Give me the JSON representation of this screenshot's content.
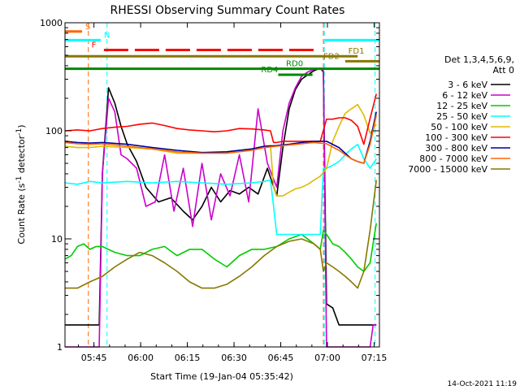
{
  "chart_data": {
    "type": "line",
    "title": "RHESSI Observing Summary Count Rates",
    "xlabel": "Start Time (19-Jan-04 05:35:42)",
    "ylabel_main": "Count Rate (s",
    "ylabel_sup": "-1",
    "ylabel_mid": " detector",
    "ylabel_end": ")",
    "y_scale": "log",
    "ylim": [
      1,
      1000
    ],
    "xlim_minutes": [
      0,
      101
    ],
    "x_ticks": [
      {
        "label": "05:45",
        "min": 9.3
      },
      {
        "label": "06:00",
        "min": 24.3
      },
      {
        "label": "06:15",
        "min": 39.3
      },
      {
        "label": "06:30",
        "min": 54.3
      },
      {
        "label": "06:45",
        "min": 69.3
      },
      {
        "label": "07:00",
        "min": 84.3
      },
      {
        "label": "07:15",
        "min": 99.3
      }
    ],
    "y_ticks": [
      {
        "label": "1",
        "value": 1
      },
      {
        "label": "10",
        "value": 10
      },
      {
        "label": "100",
        "value": 100
      },
      {
        "label": "1000",
        "value": 1000
      }
    ],
    "legend": {
      "header1": "Det 1,3,4,5,6,9,",
      "header2": "Att 0",
      "placement": "right"
    },
    "series": [
      {
        "name": "3 - 6 keV",
        "color": "#000000",
        "x": [
          0,
          5,
          11,
          12,
          14,
          16,
          18,
          20,
          23,
          26,
          30,
          34,
          38,
          41,
          44,
          47,
          50,
          53,
          56,
          59,
          62,
          65,
          68,
          70,
          72,
          74,
          76,
          78,
          80,
          82,
          83,
          84,
          86,
          88,
          90,
          92,
          94,
          96,
          98,
          100
        ],
        "y": [
          1.6,
          1.6,
          1.6,
          40,
          250,
          180,
          110,
          75,
          52,
          30,
          22,
          24,
          18,
          15,
          20,
          30,
          22,
          28,
          26,
          30,
          26,
          45,
          25,
          70,
          160,
          240,
          300,
          330,
          360,
          380,
          350,
          2.5,
          2.3,
          1.6,
          1.6,
          1.6,
          1.6,
          1.6,
          1.6,
          1.6
        ]
      },
      {
        "name": "6 - 12 keV",
        "color": "#cc00cc",
        "x": [
          0,
          11,
          12,
          14,
          16,
          18,
          20,
          23,
          26,
          29,
          32,
          35,
          38,
          41,
          44,
          47,
          50,
          53,
          56,
          59,
          62,
          65,
          68,
          70,
          72,
          74,
          76,
          78,
          80,
          82,
          83,
          84,
          88,
          92,
          96,
          98,
          99,
          100
        ],
        "y": [
          1,
          1,
          40,
          200,
          150,
          60,
          55,
          45,
          20,
          22,
          60,
          18,
          45,
          13,
          50,
          15,
          40,
          25,
          60,
          22,
          160,
          50,
          30,
          100,
          180,
          250,
          320,
          350,
          370,
          380,
          360,
          1,
          1,
          1,
          1,
          1,
          1.6,
          1.6
        ]
      },
      {
        "name": "12 - 25 keV",
        "color": "#00cc00",
        "x": [
          0,
          2,
          4,
          6,
          8,
          10,
          12,
          16,
          20,
          24,
          28,
          32,
          36,
          40,
          44,
          48,
          52,
          56,
          60,
          64,
          68,
          72,
          76,
          80,
          82,
          83,
          84,
          86,
          88,
          90,
          92,
          94,
          96,
          98,
          100
        ],
        "y": [
          6.5,
          7,
          8.5,
          9,
          8,
          8.5,
          8.5,
          7.5,
          7,
          7,
          8,
          8.5,
          7,
          8,
          8,
          6.5,
          5.5,
          7,
          8,
          8,
          8.5,
          10,
          11,
          9,
          8,
          12,
          11,
          9,
          8.5,
          7.5,
          6.5,
          5.5,
          5,
          6,
          14
        ]
      },
      {
        "name": "25 - 50 keV",
        "color": "#00ffff",
        "x": [
          0,
          4,
          8,
          12,
          20,
          28,
          36,
          44,
          52,
          60,
          64,
          66,
          67,
          68,
          70,
          72,
          74,
          76,
          78,
          80,
          82,
          83,
          84,
          86,
          88,
          90,
          92,
          94,
          96,
          98,
          100
        ],
        "y": [
          33,
          32,
          34,
          33,
          34,
          33,
          34,
          33,
          32,
          33,
          34,
          35,
          20,
          11,
          11,
          11,
          11,
          11,
          11,
          11,
          11,
          45,
          45,
          48,
          52,
          60,
          68,
          75,
          55,
          45,
          55
        ]
      },
      {
        "name": "50 - 100 keV",
        "color": "#ddbb00",
        "x": [
          0,
          4,
          8,
          12,
          20,
          28,
          36,
          44,
          52,
          60,
          64,
          66,
          67,
          68,
          70,
          72,
          74,
          76,
          78,
          80,
          82,
          84,
          86,
          88,
          90,
          92,
          94,
          96,
          98,
          100
        ],
        "y": [
          72,
          70,
          70,
          72,
          70,
          68,
          62,
          62,
          64,
          68,
          72,
          73,
          30,
          25,
          25,
          27,
          29,
          30,
          32,
          35,
          38,
          45,
          80,
          110,
          145,
          160,
          175,
          140,
          95,
          115
        ]
      },
      {
        "name": "100 - 300 keV",
        "color": "#ff0000",
        "x": [
          0,
          4,
          8,
          12,
          16,
          20,
          24,
          28,
          32,
          36,
          40,
          44,
          48,
          52,
          56,
          60,
          64,
          66,
          67,
          68,
          70,
          72,
          74,
          76,
          78,
          80,
          82,
          84,
          86,
          88,
          90,
          92,
          94,
          96,
          98,
          100
        ],
        "y": [
          100,
          102,
          100,
          105,
          108,
          110,
          115,
          118,
          112,
          105,
          102,
          100,
          98,
          100,
          105,
          104,
          102,
          100,
          78,
          78,
          80,
          80,
          80,
          80,
          80,
          80,
          80,
          128,
          128,
          132,
          132,
          125,
          110,
          75,
          130,
          220
        ]
      },
      {
        "name": "300 - 800 keV",
        "color": "#000099",
        "x": [
          0,
          4,
          8,
          12,
          20,
          28,
          36,
          44,
          52,
          60,
          64,
          68,
          72,
          76,
          80,
          84,
          88,
          90,
          92,
          94,
          96,
          98,
          100
        ],
        "y": [
          80,
          78,
          77,
          78,
          75,
          70,
          66,
          63,
          64,
          68,
          72,
          73,
          75,
          78,
          80,
          80,
          70,
          62,
          55,
          52,
          50,
          80,
          150
        ]
      },
      {
        "name": "800 - 7000 keV",
        "color": "#ff6600",
        "x": [
          0,
          4,
          8,
          12,
          20,
          28,
          36,
          44,
          52,
          60,
          64,
          68,
          72,
          76,
          80,
          84,
          88,
          90,
          92,
          94,
          96,
          98,
          100
        ],
        "y": [
          78,
          76,
          75,
          76,
          72,
          68,
          64,
          62,
          62,
          66,
          70,
          72,
          74,
          76,
          78,
          76,
          66,
          60,
          55,
          52,
          50,
          75,
          140
        ]
      },
      {
        "name": "7000 - 15000 keV",
        "color": "#887700",
        "x": [
          0,
          4,
          8,
          12,
          16,
          20,
          24,
          28,
          32,
          36,
          40,
          44,
          48,
          52,
          56,
          60,
          64,
          68,
          72,
          76,
          80,
          82,
          83,
          84,
          86,
          88,
          90,
          92,
          94,
          96,
          98,
          100
        ],
        "y": [
          3.5,
          3.5,
          4,
          4.5,
          5.5,
          6.5,
          7.5,
          7,
          6,
          5,
          4,
          3.5,
          3.5,
          3.8,
          4.5,
          5.5,
          7,
          8.5,
          9.5,
          10,
          9,
          8,
          5,
          6,
          5.5,
          5,
          4.5,
          4,
          3.5,
          5,
          12,
          35
        ]
      }
    ],
    "annotations": [
      {
        "text": "S",
        "color": "#ff6600",
        "bar_min": [
          0,
          5.5
        ],
        "y": 830,
        "label_min": 6.5
      },
      {
        "text": "N",
        "color": "#00ffff",
        "bar_min": [
          0,
          11.5
        ],
        "y": 690,
        "label_min": 12.5
      },
      {
        "text": "F",
        "color": "#ff0000",
        "bar_min": [
          12.5,
          80.5
        ],
        "y": 560,
        "label_min": 8.5,
        "dashed": true
      },
      {
        "text": "FD1",
        "color": "#887700",
        "bar_min": [
          0,
          94
        ],
        "y": 490,
        "label_min": 91
      },
      {
        "text": "FD2",
        "color": "#887700",
        "bar_min": [
          90,
          101
        ],
        "y": 440,
        "label_min": 83
      },
      {
        "text": "RD0",
        "color": "#008800",
        "bar_min": [
          0,
          101
        ],
        "y": 375,
        "label_min": 71
      },
      {
        "text": "RD4",
        "color": "#008800",
        "bar_min": [
          68.5,
          79.5
        ],
        "y": 330,
        "label_min": 63
      },
      {
        "text": "",
        "color": "#00ffff",
        "bar_min": [
          83.5,
          101
        ],
        "y": 690,
        "label_min": 0
      }
    ],
    "vertical_lines": [
      {
        "min": 7.5,
        "color": "#ff6600"
      },
      {
        "min": 13.5,
        "color": "#00ffff"
      },
      {
        "min": 83,
        "color": "#ff6600"
      },
      {
        "min": 83.3,
        "color": "#00ffff"
      },
      {
        "min": 99.6,
        "color": "#00ffff"
      }
    ]
  },
  "footer": {
    "date_stamp": "14-Oct-2021 11:19"
  }
}
